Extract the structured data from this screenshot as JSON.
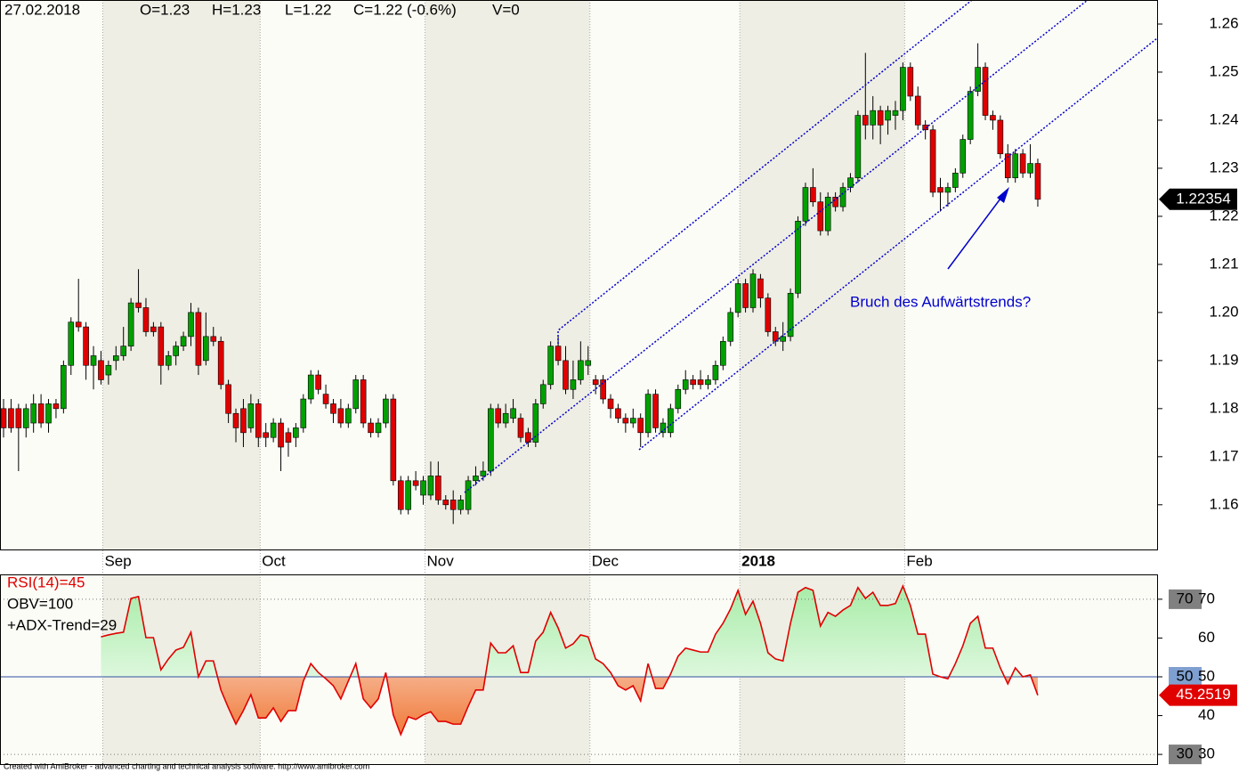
{
  "chart_data": [
    {
      "type": "candlestick",
      "header": {
        "date": "27.02.2018",
        "open": "O=1.23",
        "high": "H=1.23",
        "low": "L=1.22",
        "close": "C=1.22 (-0.6%)",
        "volume": "V=0"
      },
      "annotation": "Bruch des Aufwärtstrends?",
      "up_color": "#00a000",
      "down_color": "#e00000",
      "ylim": [
        1.1507,
        1.265
      ],
      "yticks": [
        1.16,
        1.17,
        1.18,
        1.19,
        {
          "value": 1.2,
          "label": "1.20"
        },
        1.21,
        1.22,
        1.23,
        1.24,
        1.25,
        1.26
      ],
      "categories": [
        null,
        null,
        null,
        null,
        null,
        null,
        null,
        null,
        null,
        null,
        null,
        null,
        null,
        "Sep",
        null,
        null,
        null,
        null,
        null,
        null,
        null,
        null,
        null,
        null,
        null,
        null,
        null,
        null,
        null,
        null,
        null,
        null,
        null,
        null,
        "Oct",
        null,
        null,
        null,
        null,
        null,
        null,
        null,
        null,
        null,
        null,
        null,
        null,
        null,
        null,
        null,
        null,
        null,
        null,
        null,
        null,
        null,
        "Nov",
        null,
        null,
        null,
        null,
        null,
        null,
        null,
        null,
        null,
        null,
        null,
        null,
        null,
        null,
        null,
        null,
        null,
        null,
        null,
        null,
        null,
        "Dec",
        null,
        null,
        null,
        null,
        null,
        null,
        null,
        null,
        null,
        null,
        null,
        null,
        null,
        null,
        null,
        null,
        null,
        null,
        null,
        "2018",
        null,
        null,
        null,
        null,
        null,
        null,
        null,
        null,
        null,
        null,
        null,
        null,
        null,
        null,
        null,
        null,
        null,
        null,
        null,
        null,
        null,
        "Feb",
        null,
        null,
        null,
        null,
        null,
        null,
        null,
        null,
        null,
        null,
        null,
        null,
        null,
        null,
        null,
        null,
        null,
        null
      ],
      "open": [
        1.18,
        1.18,
        1.18,
        1.176,
        1.177,
        1.181,
        1.177,
        1.181,
        1.18,
        1.189,
        1.198,
        1.197,
        1.189,
        1.19,
        1.187,
        1.19,
        1.191,
        1.193,
        1.202,
        1.201,
        1.197,
        1.197,
        1.189,
        1.191,
        1.193,
        1.195,
        1.2,
        1.19,
        1.195,
        1.194,
        1.185,
        1.179,
        1.18,
        1.176,
        1.181,
        1.175,
        1.174,
        1.177,
        1.175,
        1.174,
        1.176,
        1.182,
        1.187,
        1.183,
        1.181,
        1.18,
        1.177,
        1.18,
        1.186,
        1.177,
        1.175,
        1.177,
        1.182,
        1.165,
        1.159,
        1.165,
        1.162,
        1.162,
        1.166,
        1.161,
        1.161,
        1.159,
        1.159,
        1.165,
        1.166,
        1.167,
        1.18,
        1.177,
        1.178,
        1.178,
        1.175,
        1.173,
        1.181,
        1.185,
        1.193,
        1.19,
        1.184,
        1.186,
        1.189,
        1.186,
        1.186,
        1.182,
        1.18,
        1.178,
        1.177,
        1.178,
        1.175,
        1.183,
        1.175,
        1.175,
        1.18,
        1.184,
        1.186,
        1.186,
        1.185,
        1.186,
        1.189,
        1.194,
        1.2,
        1.206,
        1.201,
        1.207,
        1.203,
        1.196,
        1.194,
        1.195,
        1.204,
        1.219,
        1.226,
        1.223,
        1.217,
        1.224,
        1.222,
        1.226,
        1.228,
        1.241,
        1.239,
        1.242,
        1.24,
        1.241,
        1.242,
        1.251,
        1.245,
        1.239,
        1.238,
        1.226,
        1.225,
        1.226,
        1.229,
        1.236,
        1.246,
        1.251,
        1.241,
        1.24,
        1.233,
        1.228,
        1.233,
        1.229,
        1.231
      ],
      "high": [
        1.182,
        1.182,
        1.181,
        1.181,
        1.183,
        1.183,
        1.182,
        1.182,
        1.19,
        1.199,
        1.207,
        1.198,
        1.193,
        1.192,
        1.19,
        1.193,
        1.197,
        1.203,
        1.209,
        1.203,
        1.198,
        1.198,
        1.192,
        1.194,
        1.196,
        1.202,
        1.201,
        1.2,
        1.197,
        1.195,
        1.186,
        1.18,
        1.182,
        1.183,
        1.182,
        1.177,
        1.178,
        1.178,
        1.176,
        1.177,
        1.183,
        1.188,
        1.188,
        1.185,
        1.182,
        1.182,
        1.181,
        1.187,
        1.187,
        1.178,
        1.178,
        1.183,
        1.183,
        1.166,
        1.166,
        1.167,
        1.166,
        1.169,
        1.169,
        1.162,
        1.163,
        1.162,
        1.166,
        1.168,
        1.169,
        1.181,
        1.181,
        1.181,
        1.182,
        1.179,
        1.176,
        1.182,
        1.186,
        1.194,
        1.195,
        1.193,
        1.19,
        1.194,
        1.193,
        1.187,
        1.187,
        1.183,
        1.181,
        1.179,
        1.18,
        1.179,
        1.184,
        1.184,
        1.178,
        1.181,
        1.185,
        1.188,
        1.187,
        1.188,
        1.187,
        1.19,
        1.195,
        1.201,
        1.207,
        1.207,
        1.209,
        1.208,
        1.204,
        1.197,
        1.198,
        1.205,
        1.22,
        1.227,
        1.23,
        1.225,
        1.225,
        1.225,
        1.227,
        1.229,
        1.242,
        1.254,
        1.245,
        1.243,
        1.243,
        1.244,
        1.252,
        1.252,
        1.247,
        1.24,
        1.239,
        1.228,
        1.227,
        1.23,
        1.237,
        1.247,
        1.256,
        1.252,
        1.242,
        1.241,
        1.235,
        1.234,
        1.234,
        1.235,
        1.232
      ],
      "low": [
        1.174,
        1.175,
        1.167,
        1.174,
        1.175,
        1.176,
        1.175,
        1.178,
        1.179,
        1.187,
        1.196,
        1.186,
        1.184,
        1.185,
        1.185,
        1.188,
        1.19,
        1.192,
        1.2,
        1.195,
        1.195,
        1.185,
        1.188,
        1.189,
        1.192,
        1.193,
        1.187,
        1.189,
        1.193,
        1.184,
        1.177,
        1.173,
        1.172,
        1.175,
        1.172,
        1.172,
        1.173,
        1.167,
        1.17,
        1.172,
        1.175,
        1.181,
        1.183,
        1.18,
        1.177,
        1.176,
        1.176,
        1.179,
        1.176,
        1.174,
        1.174,
        1.176,
        1.164,
        1.158,
        1.158,
        1.163,
        1.16,
        1.161,
        1.16,
        1.159,
        1.156,
        1.158,
        1.158,
        1.164,
        1.165,
        1.166,
        1.176,
        1.176,
        1.177,
        1.173,
        1.172,
        1.172,
        1.18,
        1.184,
        1.189,
        1.183,
        1.182,
        1.185,
        1.187,
        1.183,
        1.181,
        1.178,
        1.177,
        1.175,
        1.176,
        1.172,
        1.174,
        1.175,
        1.174,
        1.174,
        1.179,
        1.183,
        1.184,
        1.184,
        1.184,
        1.185,
        1.188,
        1.193,
        1.199,
        1.2,
        1.2,
        1.201,
        1.195,
        1.193,
        1.192,
        1.194,
        1.203,
        1.218,
        1.222,
        1.216,
        1.216,
        1.221,
        1.221,
        1.225,
        1.227,
        1.236,
        1.236,
        1.235,
        1.237,
        1.238,
        1.24,
        1.244,
        1.238,
        1.236,
        1.224,
        1.221,
        1.222,
        1.225,
        1.228,
        1.235,
        1.245,
        1.24,
        1.238,
        1.232,
        1.227,
        1.227,
        1.228,
        1.228,
        1.222
      ],
      "close": [
        1.176,
        1.176,
        1.176,
        1.18,
        1.181,
        1.177,
        1.181,
        1.18,
        1.189,
        1.198,
        1.197,
        1.189,
        1.191,
        1.186,
        1.189,
        1.191,
        1.193,
        1.202,
        1.201,
        1.196,
        1.196,
        1.189,
        1.191,
        1.193,
        1.195,
        1.2,
        1.189,
        1.195,
        1.194,
        1.185,
        1.179,
        1.176,
        1.175,
        1.181,
        1.174,
        1.174,
        1.177,
        1.172,
        1.173,
        1.176,
        1.182,
        1.187,
        1.184,
        1.181,
        1.179,
        1.177,
        1.18,
        1.186,
        1.177,
        1.175,
        1.177,
        1.182,
        1.165,
        1.159,
        1.165,
        1.164,
        1.165,
        1.166,
        1.161,
        1.16,
        1.159,
        1.161,
        1.165,
        1.166,
        1.167,
        1.18,
        1.177,
        1.179,
        1.18,
        1.174,
        1.173,
        1.181,
        1.185,
        1.193,
        1.19,
        1.184,
        1.186,
        1.19,
        1.19,
        1.185,
        1.182,
        1.18,
        1.178,
        1.177,
        1.178,
        1.175,
        1.183,
        1.176,
        1.177,
        1.18,
        1.184,
        1.186,
        1.185,
        1.185,
        1.186,
        1.189,
        1.194,
        1.2,
        1.206,
        1.201,
        1.208,
        1.203,
        1.196,
        1.194,
        1.195,
        1.204,
        1.219,
        1.226,
        1.223,
        1.217,
        1.224,
        1.222,
        1.226,
        1.228,
        1.241,
        1.239,
        1.242,
        1.239,
        1.242,
        1.242,
        1.251,
        1.245,
        1.239,
        1.238,
        1.225,
        1.225,
        1.226,
        1.229,
        1.236,
        1.246,
        1.251,
        1.241,
        1.24,
        1.233,
        1.228,
        1.233,
        1.229,
        1.231,
        1.22354
      ]
    },
    {
      "type": "line",
      "legend": [
        {
          "text": "RSI(14)=45",
          "color": "#e00000"
        },
        {
          "text": "OBV=100",
          "color": "#000000"
        },
        {
          "text": "+ADX-Trend=29",
          "color": "#000000"
        }
      ],
      "color": "#e00000",
      "ylim": [
        27.5,
        76.4
      ],
      "yticks": [
        30,
        40,
        50,
        60,
        70
      ],
      "levels": [
        {
          "value": 70,
          "color": "#808080"
        },
        {
          "value": 50,
          "color": "#7f9fd0"
        },
        {
          "value": 30,
          "color": "#808080"
        }
      ],
      "values": [
        null,
        null,
        null,
        null,
        null,
        null,
        null,
        null,
        null,
        null,
        null,
        null,
        null,
        60.3,
        60.8,
        61.2,
        61.5,
        70.2,
        70.7,
        60.1,
        60.1,
        51.8,
        54.6,
        56.9,
        57.6,
        61.5,
        50.0,
        54.1,
        54.1,
        46.6,
        42.0,
        37.8,
        41.3,
        45.4,
        39.4,
        39.4,
        42.0,
        38.5,
        41.3,
        41.3,
        48.9,
        53.4,
        51.1,
        49.5,
        47.7,
        44.3,
        48.9,
        53.4,
        44.3,
        42.0,
        44.3,
        51.1,
        40.2,
        35.1,
        39.7,
        39.0,
        40.2,
        41.0,
        38.5,
        38.5,
        37.8,
        37.8,
        42.4,
        46.6,
        46.6,
        58.7,
        56.2,
        56.2,
        58.0,
        51.1,
        51.1,
        59.2,
        61.5,
        66.6,
        62.6,
        57.4,
        58.5,
        60.8,
        60.3,
        54.6,
        53.4,
        51.1,
        47.7,
        46.6,
        47.7,
        43.8,
        53.4,
        47.0,
        47.0,
        50.7,
        55.3,
        57.4,
        56.9,
        56.4,
        56.4,
        61.0,
        63.8,
        67.5,
        72.3,
        66.1,
        69.5,
        63.8,
        56.2,
        54.6,
        54.1,
        63.8,
        71.8,
        73.0,
        72.3,
        63.1,
        66.6,
        65.6,
        67.2,
        68.4,
        73.0,
        70.2,
        71.8,
        68.4,
        68.4,
        68.9,
        73.4,
        68.4,
        61.0,
        61.0,
        50.7,
        50.0,
        49.5,
        53.4,
        58.0,
        63.8,
        65.6,
        57.4,
        57.4,
        52.3,
        48.2,
        52.3,
        50.0,
        50.5,
        45.2519
      ]
    }
  ],
  "footer": "Created with AmiBroker - advanced charting and technical analysis software. http://www.amibroker.com"
}
